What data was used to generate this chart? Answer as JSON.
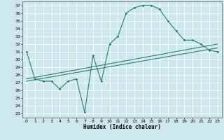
{
  "xlabel": "Humidex (Indice chaleur)",
  "xlim": [
    -0.5,
    23.5
  ],
  "ylim": [
    22.5,
    37.5
  ],
  "xticks": [
    0,
    1,
    2,
    3,
    4,
    5,
    6,
    7,
    8,
    9,
    10,
    11,
    12,
    13,
    14,
    15,
    16,
    17,
    18,
    19,
    20,
    21,
    22,
    23
  ],
  "yticks": [
    23,
    24,
    25,
    26,
    27,
    28,
    29,
    30,
    31,
    32,
    33,
    34,
    35,
    36,
    37
  ],
  "bg_color": "#cce8ec",
  "grid_color": "#ffffff",
  "line_color": "#2d7d6e",
  "line1_x": [
    0,
    1,
    2,
    3,
    4,
    5,
    6,
    7,
    8,
    9,
    10,
    11,
    12,
    13,
    14,
    15,
    16,
    17,
    18,
    19,
    20,
    21,
    22,
    23
  ],
  "line1_y": [
    31.0,
    27.5,
    27.2,
    27.2,
    26.2,
    27.2,
    27.5,
    23.2,
    30.5,
    27.2,
    32.0,
    33.0,
    36.0,
    36.7,
    37.0,
    37.0,
    36.5,
    35.0,
    33.7,
    32.5,
    32.5,
    32.0,
    31.2,
    31.0
  ],
  "line2_x": [
    0,
    23
  ],
  "line2_y": [
    27.2,
    31.5
  ],
  "line3_x": [
    0,
    23
  ],
  "line3_y": [
    27.5,
    32.0
  ]
}
